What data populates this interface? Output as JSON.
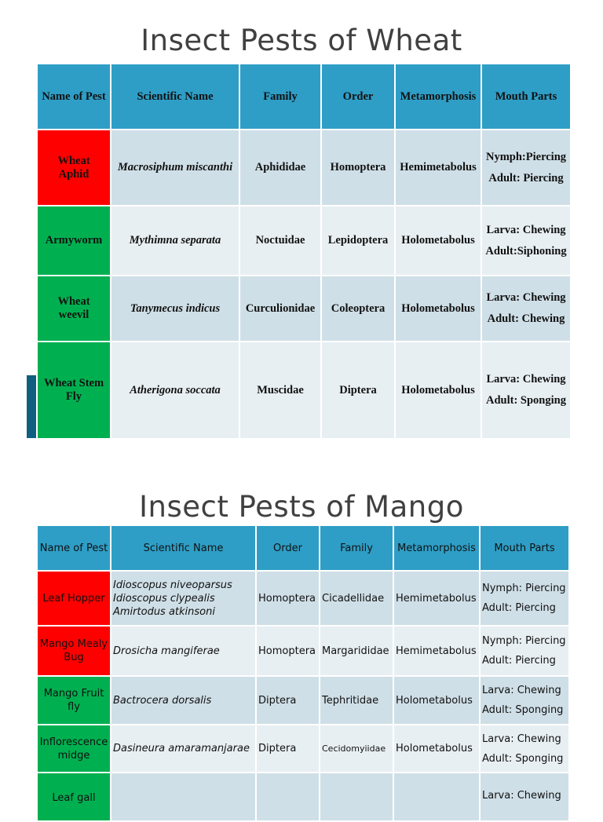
{
  "wheat": {
    "title": "Insect Pests of Wheat",
    "headers": [
      "Name of Pest",
      "Scientific Name",
      "Family",
      "Order",
      "Metamorphosis",
      "Mouth Parts"
    ],
    "rows": [
      {
        "pest": "Wheat Aphid",
        "sci": "Macrosiphum miscanthi",
        "family": "Aphididae",
        "order": "Homoptera",
        "meta": "Hemimetabolus",
        "mp1": "Nymph:Piercing",
        "mp2": "Adult: Piercing",
        "color": "#ff0000"
      },
      {
        "pest": "Armyworm",
        "sci": "Mythimna separata",
        "family": "Noctuidae",
        "order": "Lepidoptera",
        "meta": "Holometabolus",
        "mp1": "Larva: Chewing",
        "mp2": "Adult:Siphoning",
        "color": "#00b050"
      },
      {
        "pest": "Wheat weevil",
        "sci": "Tanymecus indicus",
        "family": "Curculionidae",
        "order": "Coleoptera",
        "meta": "Holometabolus",
        "mp1": "Larva: Chewing",
        "mp2": "Adult: Chewing",
        "color": "#00b050"
      },
      {
        "pest": "Wheat Stem Fly",
        "sci": "Atherigona soccata",
        "family": "Muscidae",
        "order": "Diptera",
        "meta": "Holometabolus",
        "mp1": "Larva: Chewing",
        "mp2": "Adult: Sponging",
        "color": "#00b050"
      }
    ]
  },
  "mango": {
    "title": "Insect Pests of Mango",
    "headers": [
      "Name of Pest",
      "Scientific Name",
      "Order",
      "Family",
      "Metamorphosis",
      "Mouth Parts"
    ],
    "rows": [
      {
        "pest": "Leaf Hopper",
        "sci": "Idioscopus niveoparsus",
        "sci2": "Idioscopus clypealis",
        "sci3": "Amirtodus atkinsoni",
        "order": "Homoptera",
        "family": "Cicadellidae",
        "meta": "Hemimetabolus",
        "mp1": "Nymph: Piercing",
        "mp2": "Adult: Piercing",
        "color": "#ff0000"
      },
      {
        "pest": "Mango Mealy Bug",
        "sci": "Drosicha mangiferae",
        "order": "Homoptera",
        "family": "Margarididae",
        "meta": "Hemimetabolus",
        "mp1": "Nymph: Piercing",
        "mp2": "Adult: Piercing",
        "color": "#ff0000"
      },
      {
        "pest": "Mango Fruit fly",
        "sci": "Bactrocera dorsalis",
        "order": "Diptera",
        "family": "Tephritidae",
        "meta": "Holometabolus",
        "mp1": "Larva: Chewing",
        "mp2": "Adult: Sponging",
        "color": "#00b050"
      },
      {
        "pest": "Inflorescence midge",
        "sci": "Dasineura amaramanjarae",
        "order": "Diptera",
        "family": "Cecidomyiidae",
        "meta": "Holometabolus",
        "mp1": "Larva: Chewing",
        "mp2": "Adult: Sponging",
        "color": "#00b050"
      },
      {
        "pest": "Leaf gall",
        "sci": "",
        "order": "",
        "family": "",
        "meta": "",
        "mp1": "Larva: Chewing",
        "mp2": "",
        "color": "#00b050"
      }
    ]
  }
}
